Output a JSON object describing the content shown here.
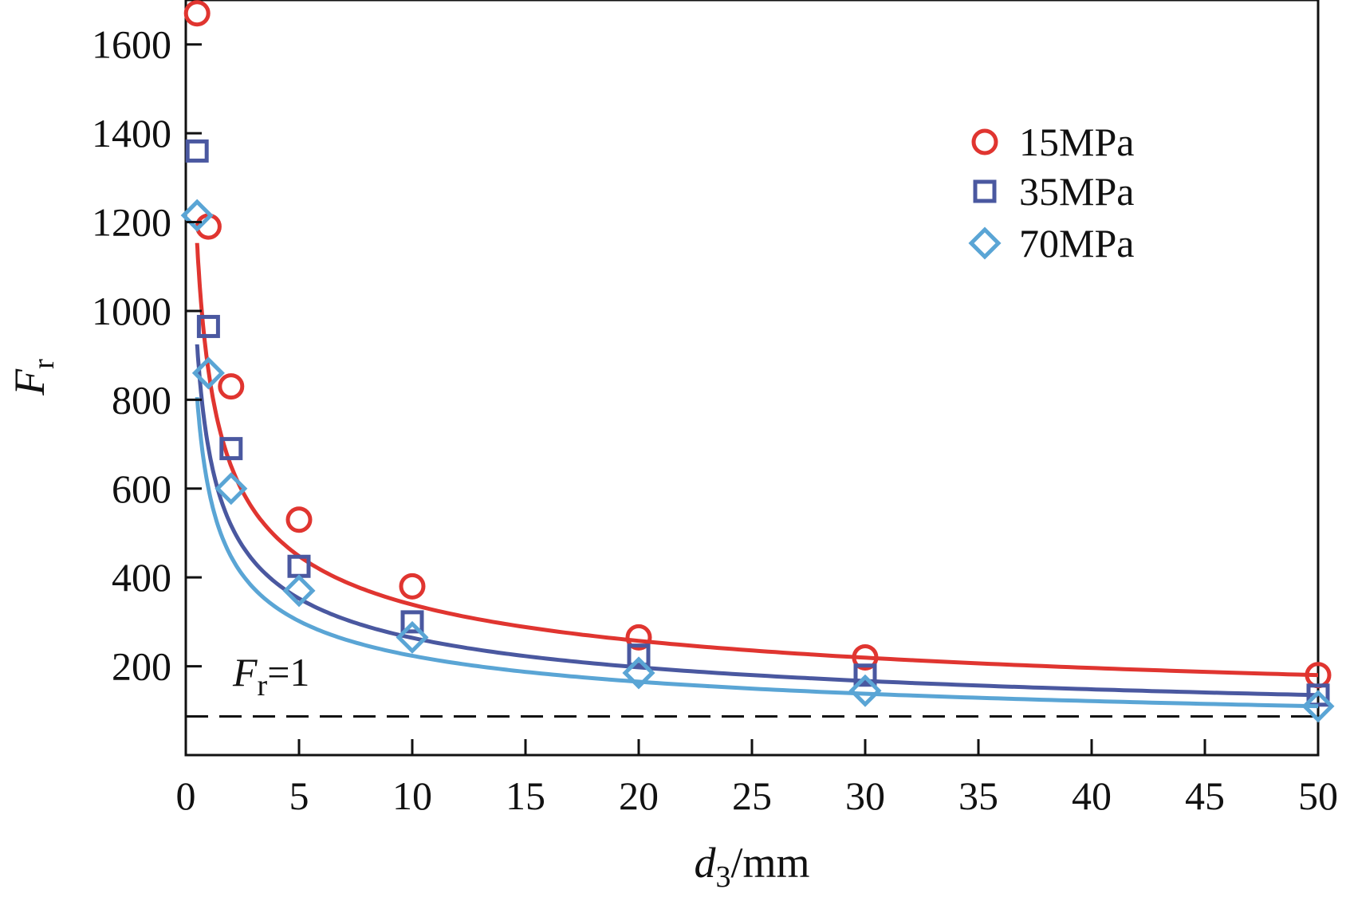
{
  "chart_data": {
    "type": "line",
    "xlabel_main": "d",
    "xlabel_sub": "3",
    "xlabel_unit": "/mm",
    "ylabel_main": "F",
    "ylabel_sub": "r",
    "xlim": [
      0,
      50
    ],
    "ylim": [
      0,
      1700
    ],
    "x_ticks": [
      0,
      5,
      10,
      15,
      20,
      25,
      30,
      35,
      40,
      45,
      50
    ],
    "y_ticks": [
      200,
      400,
      600,
      800,
      1000,
      1200,
      1400,
      1600
    ],
    "grid": false,
    "legend_position": "top-right",
    "reference_line": {
      "y": 1,
      "style": "dashed",
      "label_main": "F",
      "label_sub": "r",
      "label_rest": "=1"
    },
    "series": [
      {
        "name": "15MPa",
        "marker": "circle",
        "color": "#e03530",
        "x": [
          0.5,
          1,
          2,
          5,
          10,
          20,
          30,
          50
        ],
        "y": [
          1670,
          1190,
          830,
          530,
          380,
          265,
          220,
          180
        ],
        "curve_k": 850
      },
      {
        "name": "35MPa",
        "marker": "square",
        "color": "#4a58a0",
        "x": [
          0.5,
          1,
          2,
          5,
          10,
          20,
          30,
          50
        ],
        "y": [
          1360,
          965,
          690,
          425,
          300,
          225,
          180,
          135
        ],
        "curve_k": 690
      },
      {
        "name": "70MPa",
        "marker": "diamond",
        "color": "#5aa5d5",
        "x": [
          0.5,
          1,
          2,
          5,
          10,
          20,
          30,
          50
        ],
        "y": [
          1215,
          860,
          600,
          370,
          265,
          185,
          145,
          110
        ],
        "curve_k": 608
      }
    ]
  }
}
